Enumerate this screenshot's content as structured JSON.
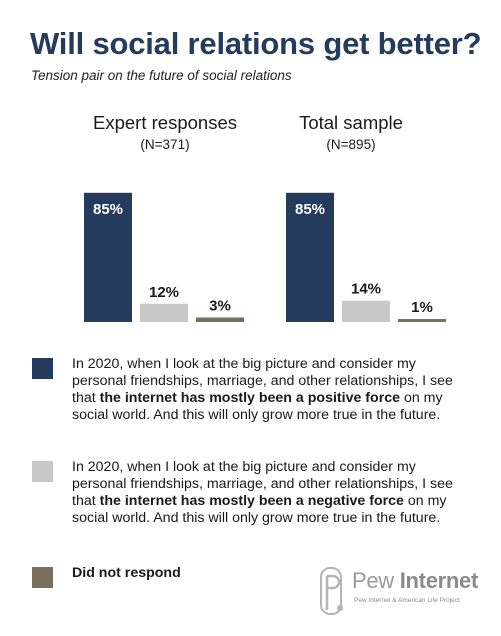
{
  "title": "Will social relations get better?",
  "subtitle": "Tension pair on the future of social relations",
  "chart_data": {
    "type": "bar",
    "title": "Will social relations get better?",
    "subtitle": "Tension pair on the future of social relations",
    "unit": "%",
    "ylim": [
      0,
      100
    ],
    "grid": false,
    "legend_position": "bottom",
    "groups": [
      {
        "title": "Expert responses",
        "n_label": "(N=371)",
        "values": [
          85,
          12,
          3
        ],
        "labels": [
          "85%",
          "12%",
          "3%"
        ]
      },
      {
        "title": "Total sample",
        "n_label": "(N=895)",
        "values": [
          85,
          14,
          1
        ],
        "labels": [
          "85%",
          "14%",
          "1%"
        ]
      }
    ],
    "series_colors": [
      "#243b5e",
      "#c8c8c8",
      "#7a6e5d"
    ]
  },
  "legend": [
    {
      "pre": "In 2020, when I look at the big picture and consider my personal friendships, marriage, and other relationships, I see that ",
      "bold": "the internet has mostly been a positive force",
      "post": " on my social world. And this will only grow more true in the future.",
      "color": "#243b5e"
    },
    {
      "pre": "In 2020, when I look at the big picture and consider my personal friendships, marriage, and other relationships, I see that ",
      "bold": "the internet has mostly been a negative force",
      "post": " on my social world. And this will only grow more true in the future.",
      "color": "#c8c8c8"
    },
    {
      "pre": "",
      "bold": "Did not respond",
      "post": "",
      "color": "#7a6e5d"
    }
  ],
  "logo": {
    "name_light": "Pew ",
    "name_bold": "Internet",
    "sub": "Pew Internet & American Life Project",
    "icon": "pew-internet-logo-icon"
  }
}
